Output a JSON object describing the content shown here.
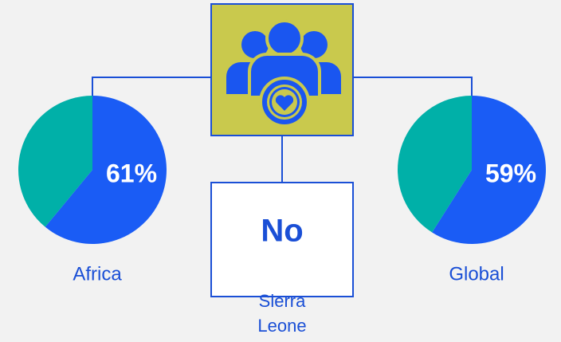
{
  "chart_data": [
    {
      "type": "pie",
      "title": "Africa",
      "values": [
        61,
        39
      ],
      "value_labels": [
        "61%",
        null
      ],
      "colors": [
        "#1a5cf5",
        "#00b0a8"
      ]
    },
    {
      "type": "pie",
      "title": "Global",
      "values": [
        59,
        41
      ],
      "value_labels": [
        "59%",
        null
      ],
      "colors": [
        "#1a5cf5",
        "#00b0a8"
      ]
    }
  ],
  "center": {
    "value": "No",
    "label_lines": [
      "Sierra",
      "Leone"
    ]
  }
}
